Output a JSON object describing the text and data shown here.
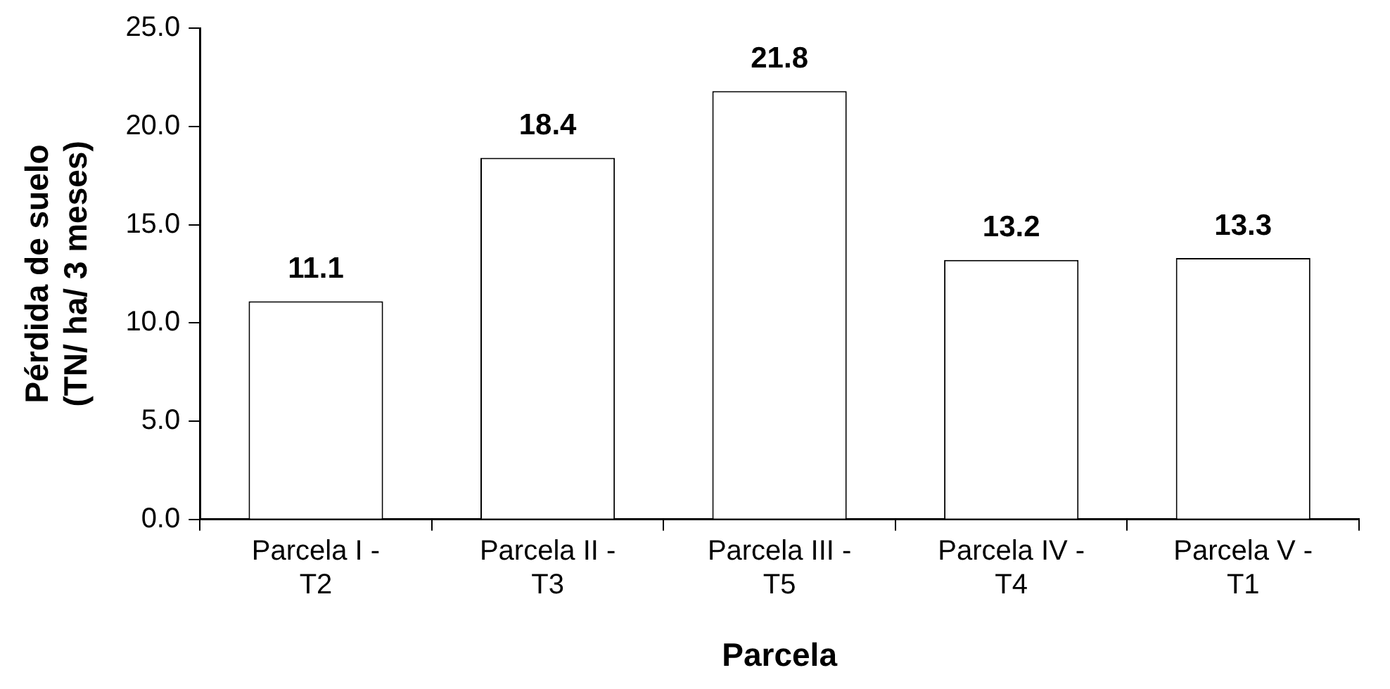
{
  "chart_data": {
    "type": "bar",
    "xlabel": "Parcela",
    "ylabel": "Pérdida de suelo (TN/ ha/ 3 meses)",
    "categories": [
      "Parcela I - T2",
      "Parcela II - T3",
      "Parcela III - T5",
      "Parcela IV - T4",
      "Parcela V - T1"
    ],
    "values": [
      11.1,
      18.4,
      21.8,
      13.2,
      13.3
    ],
    "color": "#ffffff",
    "ylim": [
      0,
      25
    ],
    "yticks": [
      {
        "value": 0,
        "label": "0.0"
      },
      {
        "value": 5,
        "label": "5.0"
      },
      {
        "value": 10,
        "label": "10.0"
      },
      {
        "value": 15,
        "label": "15.0"
      },
      {
        "value": 20,
        "label": "20.0"
      },
      {
        "value": 25,
        "label": "25.0"
      }
    ],
    "grid": false,
    "legend": false,
    "data_labels": true
  }
}
